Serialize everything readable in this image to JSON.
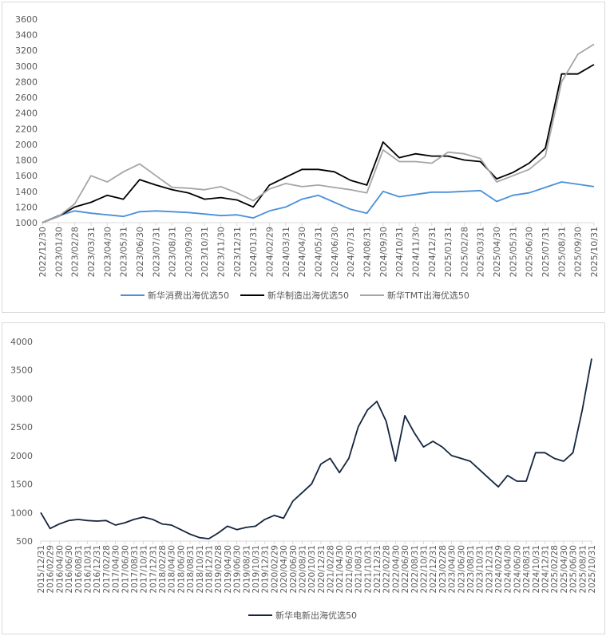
{
  "chart_data": [
    {
      "type": "line",
      "title": "",
      "ylim": [
        1000,
        3600
      ],
      "yticks": [
        1000,
        1200,
        1400,
        1600,
        1800,
        2000,
        2200,
        2400,
        2600,
        2800,
        3000,
        3200,
        3400,
        3600
      ],
      "x": [
        "2022/12/30",
        "2023/01/30",
        "2023/02/28",
        "2023/03/31",
        "2023/04/30",
        "2023/05/31",
        "2023/06/30",
        "2023/07/31",
        "2023/08/31",
        "2023/09/30",
        "2023/10/31",
        "2023/11/30",
        "2023/12/31",
        "2024/01/31",
        "2024/02/29",
        "2024/03/31",
        "2024/04/30",
        "2024/05/31",
        "2024/06/30",
        "2024/07/31",
        "2024/08/31",
        "2024/09/30",
        "2024/10/31",
        "2024/11/30",
        "2024/12/31",
        "2025/01/31",
        "2025/02/28",
        "2025/03/31",
        "2025/04/30",
        "2025/05/31",
        "2025/06/30",
        "2025/07/31",
        "2025/08/31",
        "2025/09/30",
        "2025/10/31"
      ],
      "legend_position": "bottom",
      "series": [
        {
          "name": "新华消费出海优选50",
          "color": "#4a90d9",
          "values": [
            1000,
            1090,
            1150,
            1120,
            1100,
            1080,
            1140,
            1150,
            1140,
            1130,
            1110,
            1090,
            1100,
            1060,
            1150,
            1200,
            1300,
            1350,
            1260,
            1170,
            1120,
            1400,
            1330,
            1360,
            1390,
            1390,
            1400,
            1410,
            1270,
            1350,
            1380,
            1450,
            1520,
            1490,
            1460
          ]
        },
        {
          "name": "新华制造出海优选50",
          "color": "#000000",
          "values": [
            1000,
            1080,
            1200,
            1260,
            1350,
            1300,
            1550,
            1480,
            1420,
            1380,
            1300,
            1320,
            1290,
            1200,
            1480,
            1580,
            1680,
            1680,
            1650,
            1540,
            1480,
            2030,
            1830,
            1880,
            1850,
            1850,
            1800,
            1780,
            1560,
            1640,
            1760,
            1950,
            2900,
            2900,
            3020
          ]
        },
        {
          "name": "新华TMT出海优选50",
          "color": "#a6a6a6",
          "values": [
            1000,
            1080,
            1240,
            1600,
            1520,
            1650,
            1750,
            1600,
            1450,
            1440,
            1420,
            1460,
            1380,
            1280,
            1430,
            1500,
            1460,
            1480,
            1450,
            1420,
            1380,
            1930,
            1780,
            1780,
            1760,
            1900,
            1880,
            1820,
            1520,
            1600,
            1680,
            1850,
            2800,
            3150,
            3280
          ]
        }
      ]
    },
    {
      "type": "line",
      "title": "",
      "ylim": [
        500,
        4000
      ],
      "yticks": [
        500,
        1000,
        1500,
        2000,
        2500,
        3000,
        3500,
        4000
      ],
      "x": [
        "2015/12/31",
        "2016/02/29",
        "2016/04/30",
        "2016/06/30",
        "2016/08/31",
        "2016/10/31",
        "2016/12/31",
        "2017/02/28",
        "2017/04/30",
        "2017/06/30",
        "2017/08/31",
        "2017/10/31",
        "2017/12/31",
        "2018/02/28",
        "2018/04/30",
        "2018/06/30",
        "2018/08/31",
        "2018/10/31",
        "2018/12/31",
        "2019/02/28",
        "2019/04/30",
        "2019/06/30",
        "2019/08/31",
        "2019/10/31",
        "2019/12/31",
        "2020/02/29",
        "2020/04/30",
        "2020/06/30",
        "2020/08/31",
        "2020/10/31",
        "2020/12/31",
        "2021/02/28",
        "2021/04/30",
        "2021/06/30",
        "2021/08/31",
        "2021/10/31",
        "2021/12/31",
        "2022/02/28",
        "2022/04/30",
        "2022/06/30",
        "2022/08/31",
        "2022/10/31",
        "2022/12/31",
        "2023/02/28",
        "2023/04/30",
        "2023/06/30",
        "2023/08/31",
        "2023/10/31",
        "2023/12/31",
        "2024/02/29",
        "2024/04/30",
        "2024/06/30",
        "2024/08/31",
        "2024/10/31",
        "2024/12/31",
        "2025/02/28",
        "2025/04/30",
        "2025/06/30",
        "2025/08/31",
        "2025/10/31"
      ],
      "legend_position": "bottom",
      "series": [
        {
          "name": "新华电新出海优选50",
          "color": "#14253f",
          "values": [
            1000,
            720,
            800,
            860,
            880,
            860,
            850,
            860,
            780,
            820,
            880,
            920,
            880,
            800,
            780,
            700,
            620,
            560,
            540,
            640,
            760,
            700,
            740,
            760,
            880,
            950,
            900,
            1200,
            1350,
            1500,
            1850,
            1950,
            1700,
            1950,
            2500,
            2800,
            2950,
            2600,
            1900,
            2700,
            2400,
            2150,
            2250,
            2150,
            2000,
            1950,
            1900,
            1750,
            1600,
            1450,
            1650,
            1550,
            1550,
            2050,
            2050,
            1950,
            1900,
            2050,
            2800,
            3700
          ]
        }
      ]
    }
  ]
}
